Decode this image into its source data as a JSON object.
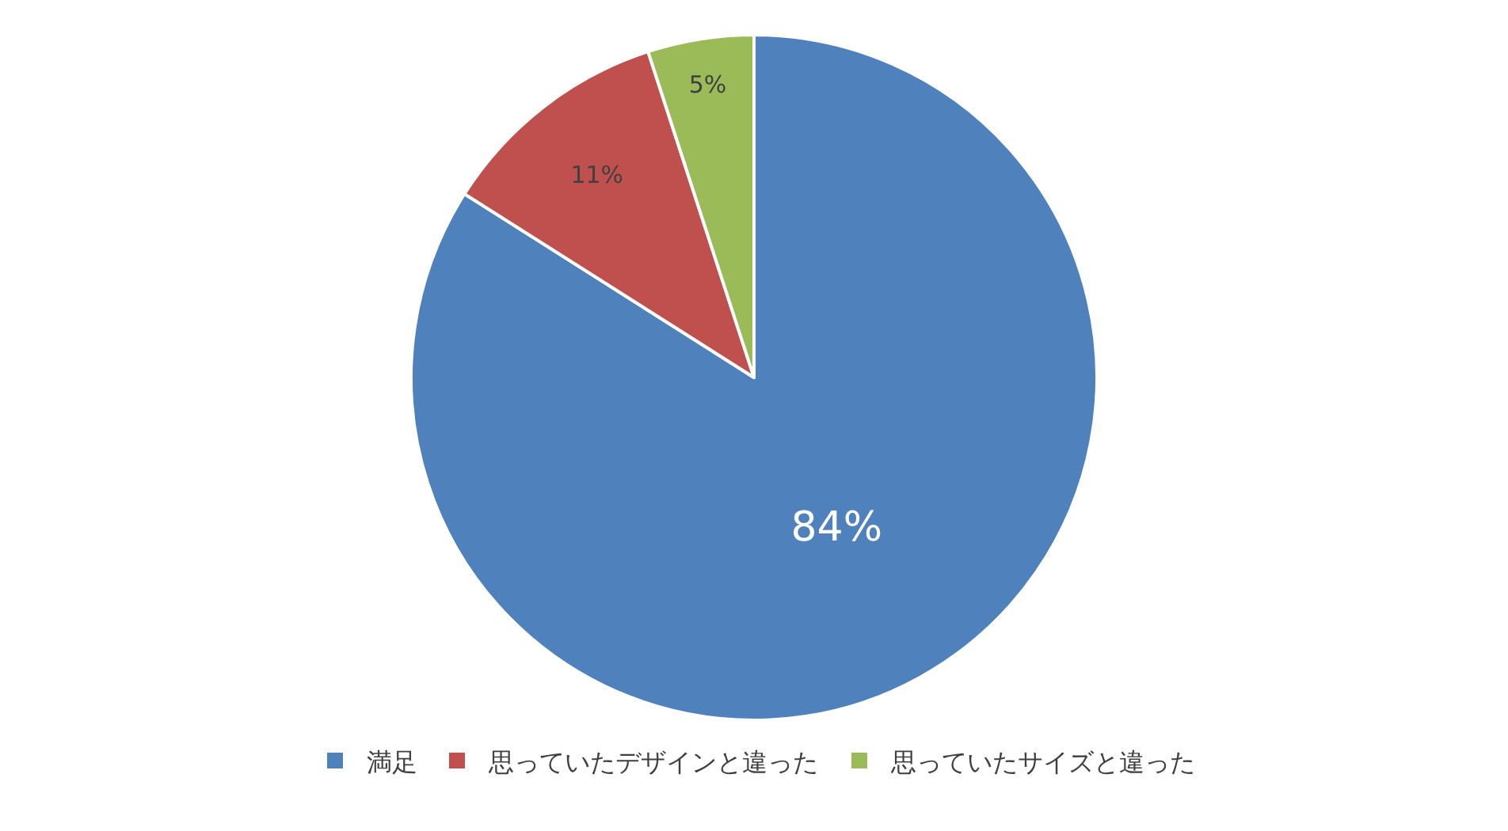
{
  "chart_data": {
    "type": "pie",
    "categories": [
      "満足",
      "思っていたデザインと違った",
      "思っていたサイズと違った"
    ],
    "values": [
      84,
      11,
      5
    ],
    "colors": [
      "#4f81bd",
      "#c0504d",
      "#9bbb59"
    ],
    "value_labels": [
      "84%",
      "11%",
      "5%"
    ],
    "legend": "bottom"
  }
}
